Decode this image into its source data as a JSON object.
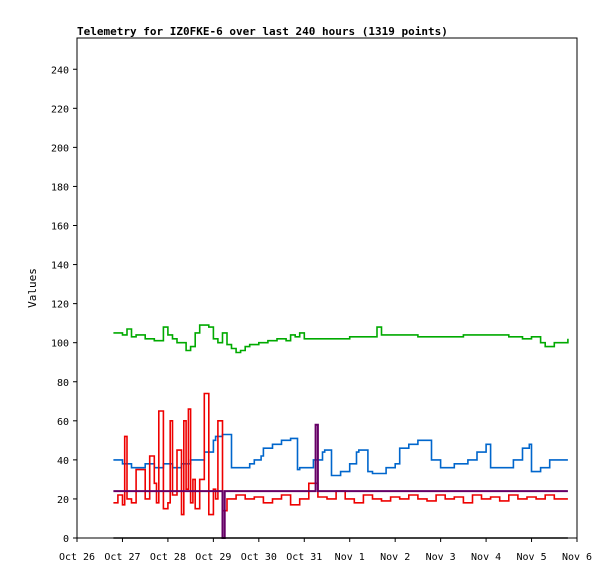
{
  "chart_data": {
    "type": "line",
    "title": "Telemetry for IZ0FKE-6 over last 240 hours (1319 points)",
    "xlabel": "",
    "ylabel": "Values",
    "x_ticks": [
      "Oct 26",
      "Oct 27",
      "Oct 28",
      "Oct 29",
      "Oct 30",
      "Oct 31",
      "Nov 1",
      "Nov 2",
      "Nov 3",
      "Nov 4",
      "Nov 5",
      "Nov 6"
    ],
    "y_ticks": [
      "0",
      "20",
      "40",
      "60",
      "80",
      "100",
      "120",
      "140",
      "160",
      "180",
      "200",
      "220",
      "240"
    ],
    "xlim": [
      0,
      11
    ],
    "ylim": [
      0,
      256
    ],
    "x_unit": "days since Oct 26 00:00",
    "grid": false,
    "legend": "none",
    "series": [
      {
        "color": "#00aa00",
        "x": [
          0.8,
          1.0,
          1.1,
          1.2,
          1.3,
          1.5,
          1.7,
          1.9,
          2.0,
          2.1,
          2.2,
          2.4,
          2.5,
          2.6,
          2.7,
          2.9,
          3.0,
          3.1,
          3.2,
          3.3,
          3.4,
          3.5,
          3.6,
          3.7,
          3.8,
          4.0,
          4.2,
          4.4,
          4.6,
          4.7,
          4.8,
          4.9,
          5.0,
          5.5,
          6.0,
          6.5,
          6.6,
          6.7,
          7.0,
          7.5,
          8.0,
          8.5,
          9.0,
          9.5,
          9.8,
          10.0,
          10.2,
          10.3,
          10.5,
          10.8
        ],
        "values": [
          105,
          104,
          107,
          103,
          104,
          102,
          101,
          108,
          104,
          102,
          100,
          96,
          98,
          105,
          109,
          108,
          102,
          100,
          105,
          99,
          97,
          95,
          96,
          98,
          99,
          100,
          101,
          102,
          101,
          104,
          103,
          105,
          102,
          102,
          103,
          103,
          108,
          104,
          104,
          103,
          103,
          104,
          104,
          103,
          102,
          103,
          100,
          98,
          100,
          102
        ]
      },
      {
        "color": "#0066cc",
        "x": [
          0.8,
          1.0,
          1.2,
          1.5,
          1.7,
          1.9,
          2.1,
          2.3,
          2.5,
          2.8,
          3.0,
          3.05,
          3.2,
          3.4,
          3.6,
          3.8,
          3.9,
          4.05,
          4.1,
          4.3,
          4.5,
          4.7,
          4.85,
          4.9,
          5.2,
          5.4,
          5.45,
          5.6,
          5.8,
          6.0,
          6.15,
          6.2,
          6.4,
          6.5,
          6.8,
          7.0,
          7.1,
          7.3,
          7.5,
          7.8,
          8.0,
          8.1,
          8.3,
          8.6,
          8.8,
          9.0,
          9.1,
          9.3,
          9.6,
          9.8,
          9.95,
          10.0,
          10.2,
          10.4,
          10.6,
          10.8
        ],
        "values": [
          40,
          38,
          36,
          38,
          36,
          38,
          36,
          38,
          40,
          44,
          50,
          52,
          53,
          36,
          36,
          38,
          40,
          42,
          46,
          48,
          50,
          51,
          35,
          36,
          40,
          44,
          45,
          32,
          34,
          38,
          44,
          45,
          34,
          33,
          36,
          38,
          46,
          48,
          50,
          40,
          36,
          36,
          38,
          40,
          44,
          48,
          36,
          36,
          40,
          46,
          48,
          34,
          36,
          40,
          40,
          40
        ]
      },
      {
        "color": "#ee0000",
        "x": [
          0.8,
          0.9,
          1.0,
          1.05,
          1.1,
          1.2,
          1.3,
          1.5,
          1.6,
          1.7,
          1.75,
          1.8,
          1.9,
          2.0,
          2.05,
          2.1,
          2.2,
          2.3,
          2.35,
          2.4,
          2.45,
          2.5,
          2.55,
          2.6,
          2.7,
          2.8,
          2.9,
          3.0,
          3.05,
          3.1,
          3.2,
          3.3,
          3.5,
          3.7,
          3.9,
          4.1,
          4.3,
          4.5,
          4.7,
          4.9,
          5.1,
          5.3,
          5.5,
          5.7,
          5.9,
          6.1,
          6.3,
          6.5,
          6.7,
          6.9,
          7.1,
          7.3,
          7.5,
          7.7,
          7.9,
          8.1,
          8.3,
          8.5,
          8.7,
          8.9,
          9.1,
          9.3,
          9.5,
          9.7,
          9.9,
          10.1,
          10.3,
          10.5,
          10.8
        ],
        "values": [
          18,
          22,
          17,
          52,
          20,
          18,
          35,
          20,
          42,
          28,
          18,
          65,
          15,
          18,
          60,
          22,
          45,
          12,
          60,
          25,
          66,
          18,
          30,
          15,
          30,
          74,
          12,
          25,
          20,
          60,
          14,
          20,
          22,
          20,
          21,
          18,
          20,
          22,
          17,
          20,
          28,
          21,
          20,
          24,
          20,
          18,
          22,
          20,
          19,
          21,
          20,
          22,
          20,
          19,
          22,
          20,
          21,
          18,
          22,
          20,
          21,
          19,
          22,
          20,
          21,
          20,
          22,
          20,
          20
        ]
      },
      {
        "color": "#660066",
        "x": [
          0.8,
          1.5,
          2.5,
          3.0,
          3.15,
          3.2,
          3.25,
          3.3,
          3.5,
          4.5,
          5.2,
          5.25,
          5.3,
          5.4,
          6.5,
          7.5,
          8.5,
          9.5,
          10.5,
          10.8
        ],
        "values": [
          24,
          24,
          24,
          24,
          24,
          0,
          24,
          24,
          24,
          24,
          24,
          58,
          24,
          24,
          24,
          24,
          24,
          24,
          24,
          24
        ]
      },
      {
        "color": "#000000",
        "x": [
          0.8,
          10.8
        ],
        "values": [
          0,
          0
        ]
      }
    ]
  }
}
